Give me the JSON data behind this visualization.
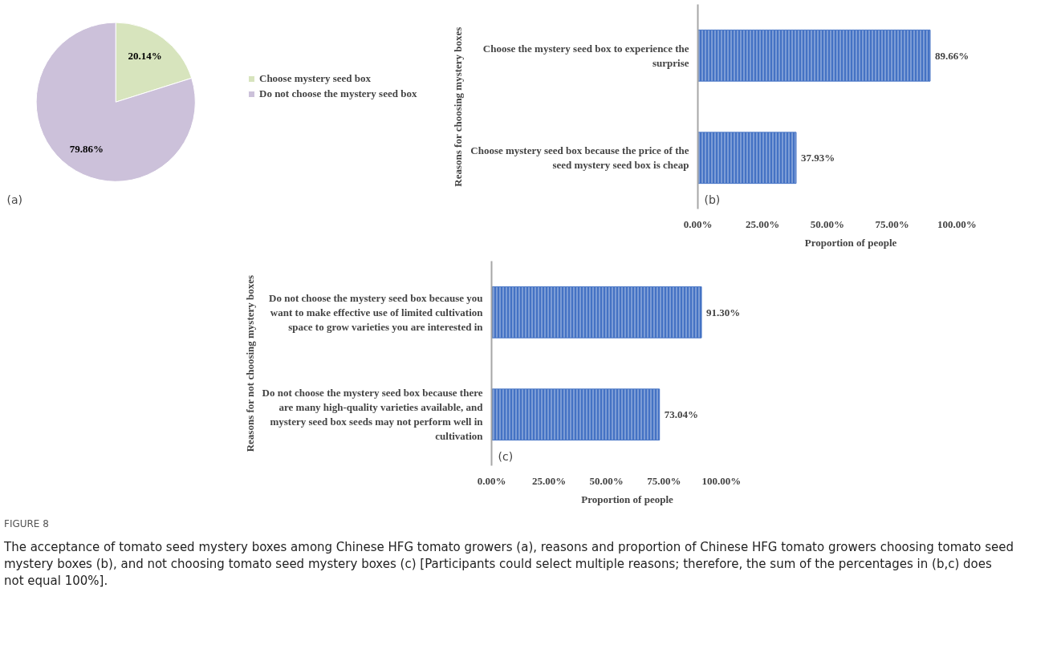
{
  "chart_data": [
    {
      "type": "pie",
      "categories": [
        "Choose mystery seed box",
        "Do not choose the mystery seed box"
      ],
      "values": [
        20.14,
        79.86
      ],
      "colors": [
        "#d7e4bd",
        "#ccc1da"
      ],
      "value_labels": [
        "20.14%",
        "79.86%"
      ],
      "legend": "right",
      "annotations": [
        "(a)"
      ]
    },
    {
      "type": "bar",
      "orientation": "horizontal",
      "categories": [
        "Choose the mystery seed box to experience the surprise",
        "Choose mystery seed box because the price of the seed mystery seed box is cheap"
      ],
      "values": [
        89.66,
        37.93
      ],
      "color": "#4472c4",
      "value_labels": [
        "89.66%",
        "37.93%"
      ],
      "xlim": [
        0,
        100
      ],
      "xticks": [
        {
          "value": 0,
          "label": "0.00%"
        },
        {
          "value": 25,
          "label": "25.00%"
        },
        {
          "value": 50,
          "label": "50.00%"
        },
        {
          "value": 75,
          "label": "75.00%"
        },
        {
          "value": 100,
          "label": "100.00%"
        }
      ],
      "xlabel": "Proportion of people",
      "ylabel": "Reasons for choosing mystery boxes",
      "grid": false,
      "annotations": [
        "(b)"
      ]
    },
    {
      "type": "bar",
      "orientation": "horizontal",
      "categories": [
        "Do not choose the mystery seed box because you want to make effective use of limited cultivation space to grow varieties you are interested in",
        "Do not choose the mystery seed box because there are many high-quality varieties available, and mystery seed box seeds may not perform well in cultivation"
      ],
      "values": [
        91.3,
        73.04
      ],
      "color": "#4472c4",
      "value_labels": [
        "91.30%",
        "73.04%"
      ],
      "xlim": [
        0,
        100
      ],
      "xticks": [
        {
          "value": 0,
          "label": "0.00%"
        },
        {
          "value": 25,
          "label": "25.00%"
        },
        {
          "value": 50,
          "label": "50.00%"
        },
        {
          "value": 75,
          "label": "75.00%"
        },
        {
          "value": 100,
          "label": "100.00%"
        }
      ],
      "xlabel": "Proportion of people",
      "ylabel": "Reasons for not choosing mystery boxes",
      "grid": false,
      "annotations": [
        "(c)",
        "FIGURE 8",
        "The acceptance of tomato seed mystery boxes among Chinese HFG tomato growers (a), reasons and proportion of Chinese HFG tomato growers choosing tomato seed mystery boxes (b), and not choosing tomato seed mystery boxes (c) [Participants could select multiple reasons; therefore, the sum of the percentages in (b,c) does not equal 100%]."
      ]
    }
  ]
}
